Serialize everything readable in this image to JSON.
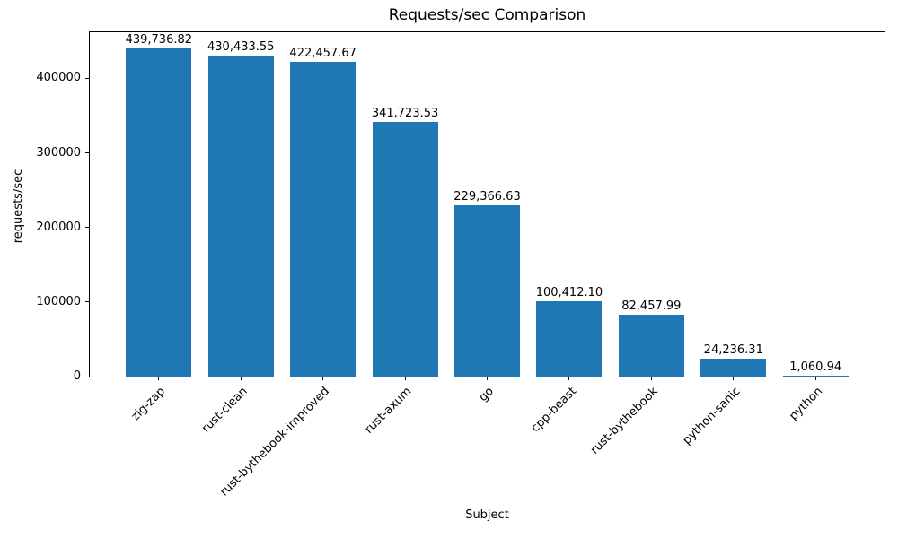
{
  "chart_data": {
    "type": "bar",
    "title": "Requests/sec Comparison",
    "xlabel": "Subject",
    "ylabel": "requests/sec",
    "categories": [
      "zig-zap",
      "rust-clean",
      "rust-bythebook-improved",
      "rust-axum",
      "go",
      "cpp-beast",
      "rust-bythebook",
      "python-sanic",
      "python"
    ],
    "values": [
      439736.82,
      430433.55,
      422457.67,
      341723.53,
      229366.63,
      100412.1,
      82457.99,
      24236.31,
      1060.94
    ],
    "value_labels": [
      "439,736.82",
      "430,433.55",
      "422,457.67",
      "341,723.53",
      "229,366.63",
      "100,412.10",
      "82,457.99",
      "24,236.31",
      "1,060.94"
    ],
    "yticks": [
      0,
      100000,
      200000,
      300000,
      400000
    ],
    "ytick_labels": [
      "0",
      "100000",
      "200000",
      "300000",
      "400000"
    ],
    "ylim": [
      0,
      461723.66
    ],
    "xlim": [
      -0.84,
      8.84
    ],
    "bar_width": 0.8,
    "bar_color": "#1f77b4",
    "grid": false,
    "legend": null
  }
}
